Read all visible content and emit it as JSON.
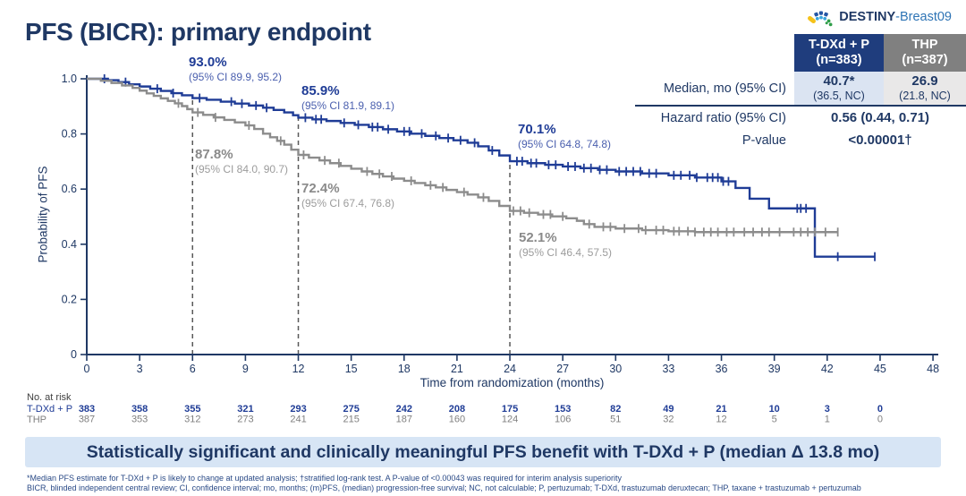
{
  "logo": {
    "name_bold": "DESTINY",
    "name_light": "-Breast09"
  },
  "title": "PFS (BICR): primary endpoint",
  "results_table": {
    "col_tdxd": {
      "line1": "T-DXd + P",
      "line2": "(n=383)"
    },
    "col_thp": {
      "line1": "THP",
      "line2": "(n=387)"
    },
    "median": {
      "label": "Median, mo (95% CI)",
      "tdxd_value": "40.7*",
      "tdxd_ci": "(36.5, NC)",
      "thp_value": "26.9",
      "thp_ci": "(21.8, NC)"
    },
    "hazard": {
      "label": "Hazard ratio (95% CI)",
      "value": "0.56 (0.44, 0.71)"
    },
    "pvalue": {
      "label": "P-value",
      "value": "<0.00001†"
    }
  },
  "chart_data": {
    "type": "line",
    "subtype": "kaplan-meier-step",
    "title": "",
    "xlabel": "Time from randomization (months)",
    "ylabel": "Probability of PFS",
    "xlim": [
      0,
      48
    ],
    "ylim": [
      0,
      1.0
    ],
    "xticks": [
      0,
      3,
      6,
      9,
      12,
      15,
      18,
      21,
      24,
      27,
      30,
      33,
      36,
      39,
      42,
      45,
      48
    ],
    "yticks": [
      1.0,
      0.8,
      0.6,
      0.4,
      0.2,
      0
    ],
    "ytick_labels": [
      "1.0",
      "0.8",
      "0.6",
      "0.4",
      "0.2",
      "0"
    ],
    "grid": false,
    "legend": "none",
    "reference_lines_x": [
      6,
      12,
      24
    ],
    "series": [
      {
        "name": "T-DXd + P",
        "color": "#1f3c96",
        "end": 44.7,
        "steps": [
          [
            0,
            1.0
          ],
          [
            1.2,
            0.995
          ],
          [
            1.8,
            0.988
          ],
          [
            2.4,
            0.98
          ],
          [
            3.0,
            0.972
          ],
          [
            3.6,
            0.964
          ],
          [
            4.2,
            0.956
          ],
          [
            4.8,
            0.948
          ],
          [
            5.4,
            0.94
          ],
          [
            6.0,
            0.93
          ],
          [
            6.8,
            0.924
          ],
          [
            7.6,
            0.917
          ],
          [
            8.4,
            0.91
          ],
          [
            9.2,
            0.903
          ],
          [
            10.0,
            0.895
          ],
          [
            10.6,
            0.887
          ],
          [
            11.2,
            0.878
          ],
          [
            11.7,
            0.868
          ],
          [
            12.0,
            0.859
          ],
          [
            12.8,
            0.853
          ],
          [
            13.6,
            0.847
          ],
          [
            14.4,
            0.84
          ],
          [
            15.2,
            0.833
          ],
          [
            16.0,
            0.825
          ],
          [
            16.8,
            0.817
          ],
          [
            17.6,
            0.809
          ],
          [
            18.4,
            0.801
          ],
          [
            19.2,
            0.793
          ],
          [
            20.0,
            0.785
          ],
          [
            20.8,
            0.777
          ],
          [
            21.6,
            0.768
          ],
          [
            22.2,
            0.755
          ],
          [
            22.8,
            0.74
          ],
          [
            23.4,
            0.722
          ],
          [
            24.0,
            0.701
          ],
          [
            25.0,
            0.694
          ],
          [
            26.0,
            0.688
          ],
          [
            27.0,
            0.682
          ],
          [
            28.0,
            0.676
          ],
          [
            29.0,
            0.67
          ],
          [
            30.0,
            0.664
          ],
          [
            31.5,
            0.657
          ],
          [
            33.0,
            0.65
          ],
          [
            34.5,
            0.642
          ],
          [
            36.0,
            0.628
          ],
          [
            36.8,
            0.604
          ],
          [
            37.6,
            0.565
          ],
          [
            38.7,
            0.53
          ],
          [
            41.3,
            0.355
          ]
        ],
        "censors": [
          1.0,
          2.2,
          4.0,
          4.9,
          6.4,
          8.2,
          8.8,
          9.6,
          10.2,
          12.4,
          13.0,
          13.3,
          14.6,
          15.4,
          16.2,
          16.5,
          17.1,
          18.0,
          18.3,
          19.0,
          19.8,
          20.5,
          21.2,
          22.0,
          23.0,
          24.4,
          24.7,
          25.2,
          25.5,
          26.2,
          26.6,
          27.3,
          27.7,
          28.2,
          28.6,
          29.1,
          29.5,
          30.2,
          30.6,
          31.0,
          31.4,
          31.9,
          32.3,
          33.3,
          33.7,
          34.2,
          34.6,
          35.2,
          35.5,
          35.8,
          36.1,
          36.4,
          40.3,
          40.5,
          40.8,
          42.6,
          44.7
        ]
      },
      {
        "name": "THP",
        "color": "#8c8c8c",
        "end": 42.6,
        "steps": [
          [
            0,
            1.0
          ],
          [
            0.8,
            0.993
          ],
          [
            1.4,
            0.985
          ],
          [
            2.0,
            0.976
          ],
          [
            2.6,
            0.967
          ],
          [
            3.0,
            0.957
          ],
          [
            3.4,
            0.947
          ],
          [
            3.8,
            0.938
          ],
          [
            4.2,
            0.929
          ],
          [
            4.6,
            0.92
          ],
          [
            5.0,
            0.911
          ],
          [
            5.4,
            0.901
          ],
          [
            5.7,
            0.89
          ],
          [
            6.0,
            0.878
          ],
          [
            6.6,
            0.869
          ],
          [
            7.2,
            0.86
          ],
          [
            7.8,
            0.851
          ],
          [
            8.4,
            0.842
          ],
          [
            9.0,
            0.831
          ],
          [
            9.5,
            0.818
          ],
          [
            10.0,
            0.801
          ],
          [
            10.4,
            0.788
          ],
          [
            10.8,
            0.775
          ],
          [
            11.2,
            0.761
          ],
          [
            11.6,
            0.743
          ],
          [
            12.0,
            0.724
          ],
          [
            12.6,
            0.714
          ],
          [
            13.2,
            0.704
          ],
          [
            13.8,
            0.694
          ],
          [
            14.4,
            0.684
          ],
          [
            15.0,
            0.674
          ],
          [
            15.6,
            0.664
          ],
          [
            16.2,
            0.655
          ],
          [
            16.8,
            0.646
          ],
          [
            17.4,
            0.638
          ],
          [
            18.0,
            0.63
          ],
          [
            18.6,
            0.622
          ],
          [
            19.2,
            0.614
          ],
          [
            19.8,
            0.606
          ],
          [
            20.4,
            0.597
          ],
          [
            21.0,
            0.589
          ],
          [
            21.6,
            0.58
          ],
          [
            22.2,
            0.57
          ],
          [
            22.8,
            0.557
          ],
          [
            23.4,
            0.539
          ],
          [
            24.0,
            0.521
          ],
          [
            24.8,
            0.514
          ],
          [
            25.6,
            0.508
          ],
          [
            26.4,
            0.501
          ],
          [
            27.2,
            0.494
          ],
          [
            27.8,
            0.485
          ],
          [
            28.2,
            0.473
          ],
          [
            28.8,
            0.463
          ],
          [
            30.0,
            0.457
          ],
          [
            31.5,
            0.451
          ],
          [
            33.0,
            0.447
          ],
          [
            34.5,
            0.444
          ]
        ],
        "censors": [
          5.2,
          6.3,
          7.3,
          9.2,
          11.0,
          12.3,
          13.5,
          14.3,
          15.9,
          16.6,
          17.3,
          18.4,
          19.5,
          20.2,
          21.4,
          22.5,
          24.2,
          24.6,
          25.1,
          25.9,
          26.3,
          27.0,
          28.5,
          29.3,
          29.7,
          30.5,
          31.3,
          31.7,
          32.3,
          32.7,
          33.3,
          33.6,
          34.1,
          34.5,
          35.0,
          35.4,
          35.8,
          36.3,
          36.7,
          37.3,
          37.8,
          38.3,
          38.7,
          39.3,
          40.1,
          40.5,
          40.9,
          41.3,
          41.9,
          42.6
        ]
      }
    ],
    "landmarks": [
      {
        "series": "T-DXd + P",
        "time": 6,
        "pct": "93.0%",
        "ci": "(95% CI 89.9, 95.2)"
      },
      {
        "series": "T-DXd + P",
        "time": 12,
        "pct": "85.9%",
        "ci": "(95% CI 81.9, 89.1)"
      },
      {
        "series": "T-DXd + P",
        "time": 24,
        "pct": "70.1%",
        "ci": "(95% CI 64.8, 74.8)"
      },
      {
        "series": "THP",
        "time": 6,
        "pct": "87.8%",
        "ci": "(95% CI 84.0, 90.7)"
      },
      {
        "series": "THP",
        "time": 12,
        "pct": "72.4%",
        "ci": "(95% CI 67.4, 76.8)"
      },
      {
        "series": "THP",
        "time": 24,
        "pct": "52.1%",
        "ci": "(95% CI 46.4, 57.5)"
      }
    ],
    "at_risk": {
      "label": "No. at risk",
      "rows": [
        {
          "name": "T-DXd + P",
          "values": [
            383,
            358,
            355,
            321,
            293,
            275,
            242,
            208,
            175,
            153,
            82,
            49,
            21,
            10,
            3,
            0
          ]
        },
        {
          "name": "THP",
          "values": [
            387,
            353,
            312,
            273,
            241,
            215,
            187,
            160,
            124,
            106,
            51,
            32,
            12,
            5,
            1,
            0
          ]
        }
      ]
    }
  },
  "banner": "Statistically significant and clinically meaningful PFS benefit with T-DXd + P (median Δ 13.8 mo)",
  "footnotes": [
    "*Median PFS estimate for T-DXd + P is likely to change at updated analysis; †stratified log-rank test. A P-value of <0.00043 was required for interim analysis superiority",
    "BICR, blinded independent central review; CI, confidence interval; mo, months; (m)PFS, (median) progression-free survival; NC, not calculable; P, pertuzumab; T-DXd, trastuzumab deruxtecan; THP, taxane + trastuzumab + pertuzumab"
  ],
  "colors": {
    "tdxd": "#1f3c96",
    "thp": "#8c8c8c",
    "axis": "#1f3864",
    "ref_line": "#595959",
    "header_blue": "#1f3d7d",
    "header_gray": "#808080",
    "cell_blue": "#dbe4f2",
    "cell_gray": "#e9e8e8",
    "banner_bg": "#d7e5f5",
    "navy_text": "#1f3864"
  }
}
